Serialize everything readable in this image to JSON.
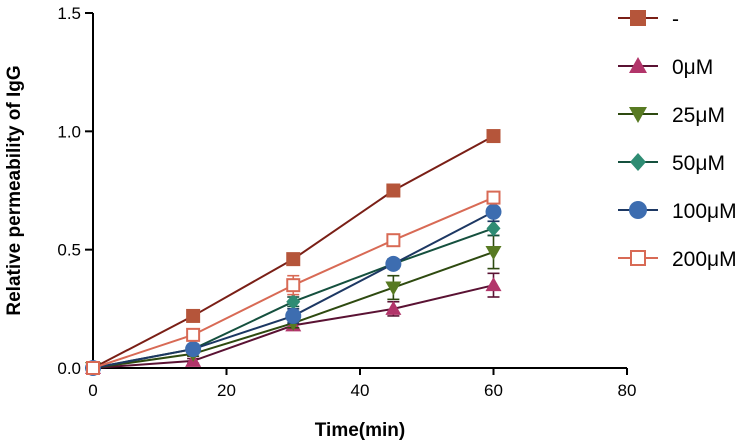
{
  "chart_data": {
    "type": "line",
    "title": "",
    "xlabel": "Time(min)",
    "ylabel": "Relative permeability of IgG",
    "xlim": [
      0,
      80
    ],
    "ylim": [
      0,
      1.5
    ],
    "xticks": [
      "0",
      "20",
      "40",
      "60",
      "80"
    ],
    "yticks": [
      "0.0",
      "0.5",
      "1.0",
      "1.5"
    ],
    "grid": false,
    "legend_position": "right",
    "x": [
      0,
      15,
      30,
      45,
      60
    ],
    "series": [
      {
        "name": "-",
        "marker": "filled-square",
        "color": "#b5553a",
        "line_color": "#7a1f16",
        "values": [
          0.0,
          0.22,
          0.46,
          0.75,
          0.98
        ],
        "err": [
          0,
          0.01,
          0.02,
          0.01,
          0.01
        ]
      },
      {
        "name": "0μM",
        "marker": "triangle-up",
        "color": "#b2356a",
        "line_color": "#5a1233",
        "values": [
          0.0,
          0.03,
          0.18,
          0.25,
          0.35
        ],
        "err": [
          0,
          0.01,
          0.02,
          0.03,
          0.05
        ]
      },
      {
        "name": "25μM",
        "marker": "triangle-down",
        "color": "#587a22",
        "line_color": "#2e4a10",
        "values": [
          0.0,
          0.06,
          0.19,
          0.34,
          0.49
        ],
        "err": [
          0,
          0.01,
          0.02,
          0.05,
          0.07
        ]
      },
      {
        "name": "50μM",
        "marker": "diamond",
        "color": "#2e8c73",
        "line_color": "#15503e",
        "values": [
          0.0,
          0.08,
          0.28,
          0.44,
          0.59
        ],
        "err": [
          0,
          0.01,
          0.02,
          0.02,
          0.03
        ]
      },
      {
        "name": "100μM",
        "marker": "circle",
        "color": "#3d6db0",
        "line_color": "#1d3863",
        "values": [
          0.0,
          0.08,
          0.22,
          0.44,
          0.66
        ],
        "err": [
          0,
          0.01,
          0.03,
          0.02,
          0.04
        ]
      },
      {
        "name": "200μM",
        "marker": "open-square",
        "color": "#d86a55",
        "line_color": "#d86a55",
        "values": [
          0.0,
          0.14,
          0.35,
          0.54,
          0.72
        ],
        "err": [
          0,
          0.01,
          0.04,
          0.02,
          0.02
        ]
      }
    ]
  }
}
